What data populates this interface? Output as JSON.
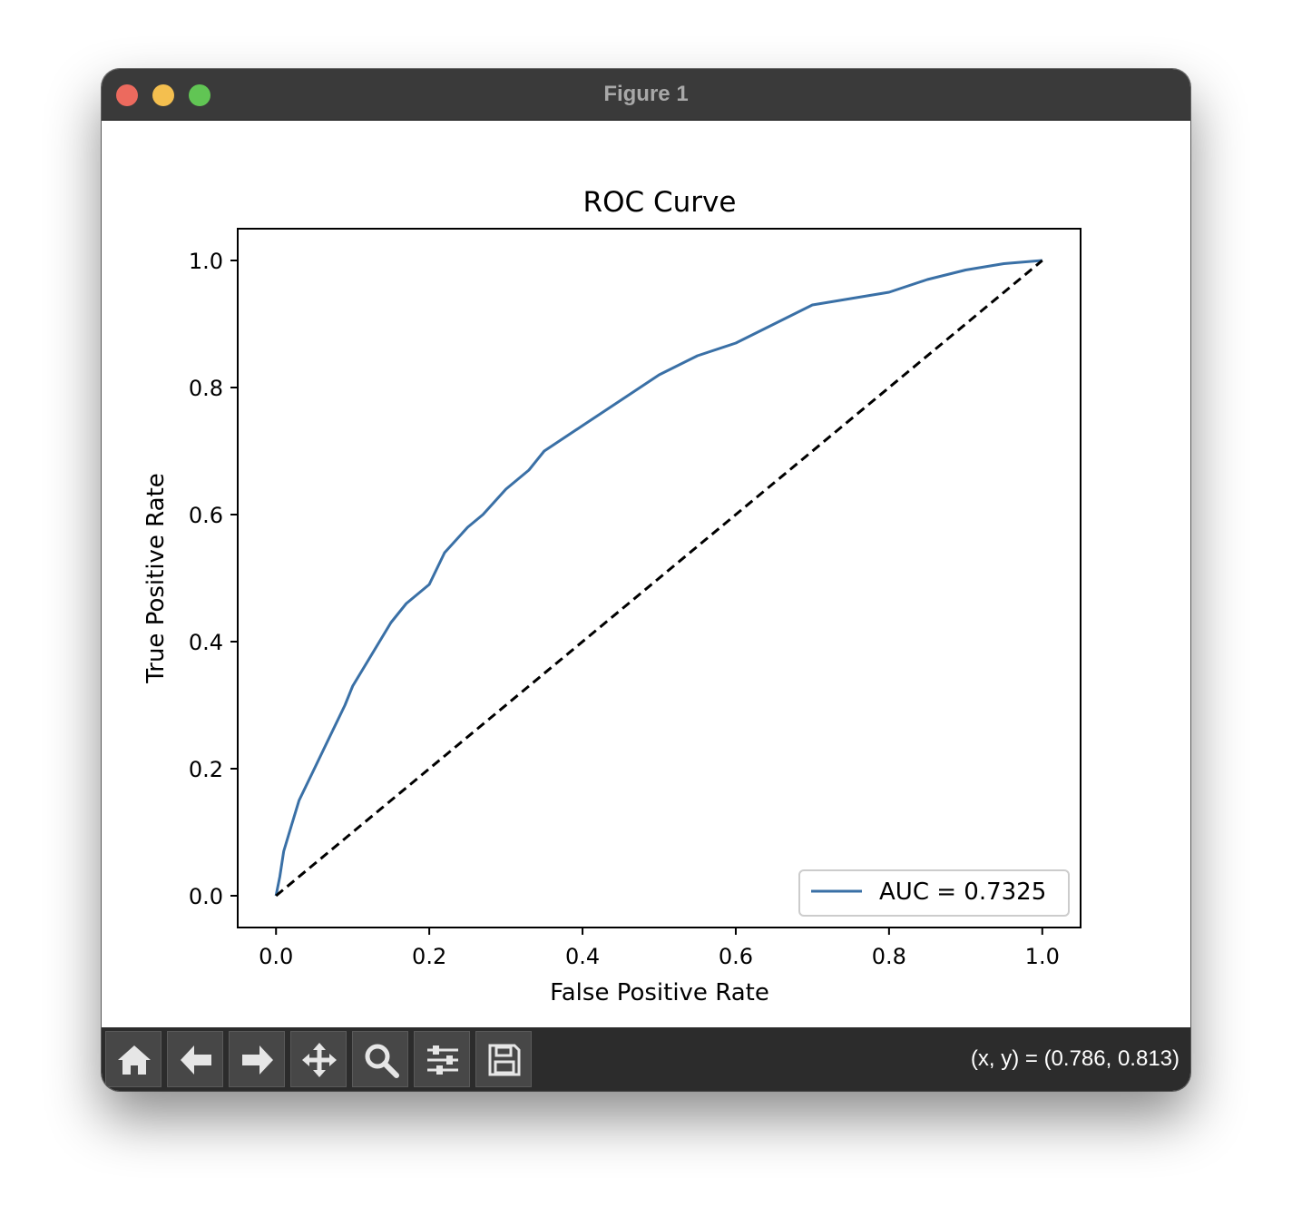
{
  "window": {
    "title": "Figure 1",
    "traffic_light_colors": {
      "close": "#ec6a5e",
      "minimize": "#f4bf4f",
      "maximize": "#61c554"
    }
  },
  "toolbar": {
    "tools": [
      {
        "name": "home-icon"
      },
      {
        "name": "back-arrow-icon"
      },
      {
        "name": "forward-arrow-icon"
      },
      {
        "name": "pan-icon"
      },
      {
        "name": "zoom-icon"
      },
      {
        "name": "subplots-config-icon"
      },
      {
        "name": "save-icon"
      }
    ],
    "coordinates": "(x, y) = (0.786, 0.813)"
  },
  "chart_data": {
    "type": "line",
    "title": "ROC Curve",
    "xlabel": "False Positive Rate",
    "ylabel": "True Positive Rate",
    "xlim": [
      -0.05,
      1.05
    ],
    "ylim": [
      -0.05,
      1.05
    ],
    "xticks": [
      "0.0",
      "0.2",
      "0.4",
      "0.6",
      "0.8",
      "1.0"
    ],
    "yticks": [
      "0.0",
      "0.2",
      "0.4",
      "0.6",
      "0.8",
      "1.0"
    ],
    "grid": false,
    "legend": {
      "position": "lower right",
      "entries": [
        "AUC = 0.7325"
      ]
    },
    "series": [
      {
        "name": "AUC = 0.7325",
        "color": "#3a70a6",
        "style": "solid",
        "x": [
          0.0,
          0.005,
          0.01,
          0.02,
          0.03,
          0.05,
          0.07,
          0.09,
          0.1,
          0.12,
          0.15,
          0.17,
          0.2,
          0.22,
          0.25,
          0.27,
          0.3,
          0.33,
          0.35,
          0.4,
          0.45,
          0.5,
          0.55,
          0.6,
          0.65,
          0.7,
          0.75,
          0.8,
          0.85,
          0.9,
          0.95,
          1.0
        ],
        "y": [
          0.0,
          0.03,
          0.07,
          0.11,
          0.15,
          0.2,
          0.25,
          0.3,
          0.33,
          0.37,
          0.43,
          0.46,
          0.49,
          0.54,
          0.58,
          0.6,
          0.64,
          0.67,
          0.7,
          0.74,
          0.78,
          0.82,
          0.85,
          0.87,
          0.9,
          0.93,
          0.94,
          0.95,
          0.97,
          0.985,
          0.995,
          1.0
        ]
      },
      {
        "name": "",
        "color": "#000000",
        "style": "dashed",
        "x": [
          0.0,
          1.0
        ],
        "y": [
          0.0,
          1.0
        ]
      }
    ]
  }
}
